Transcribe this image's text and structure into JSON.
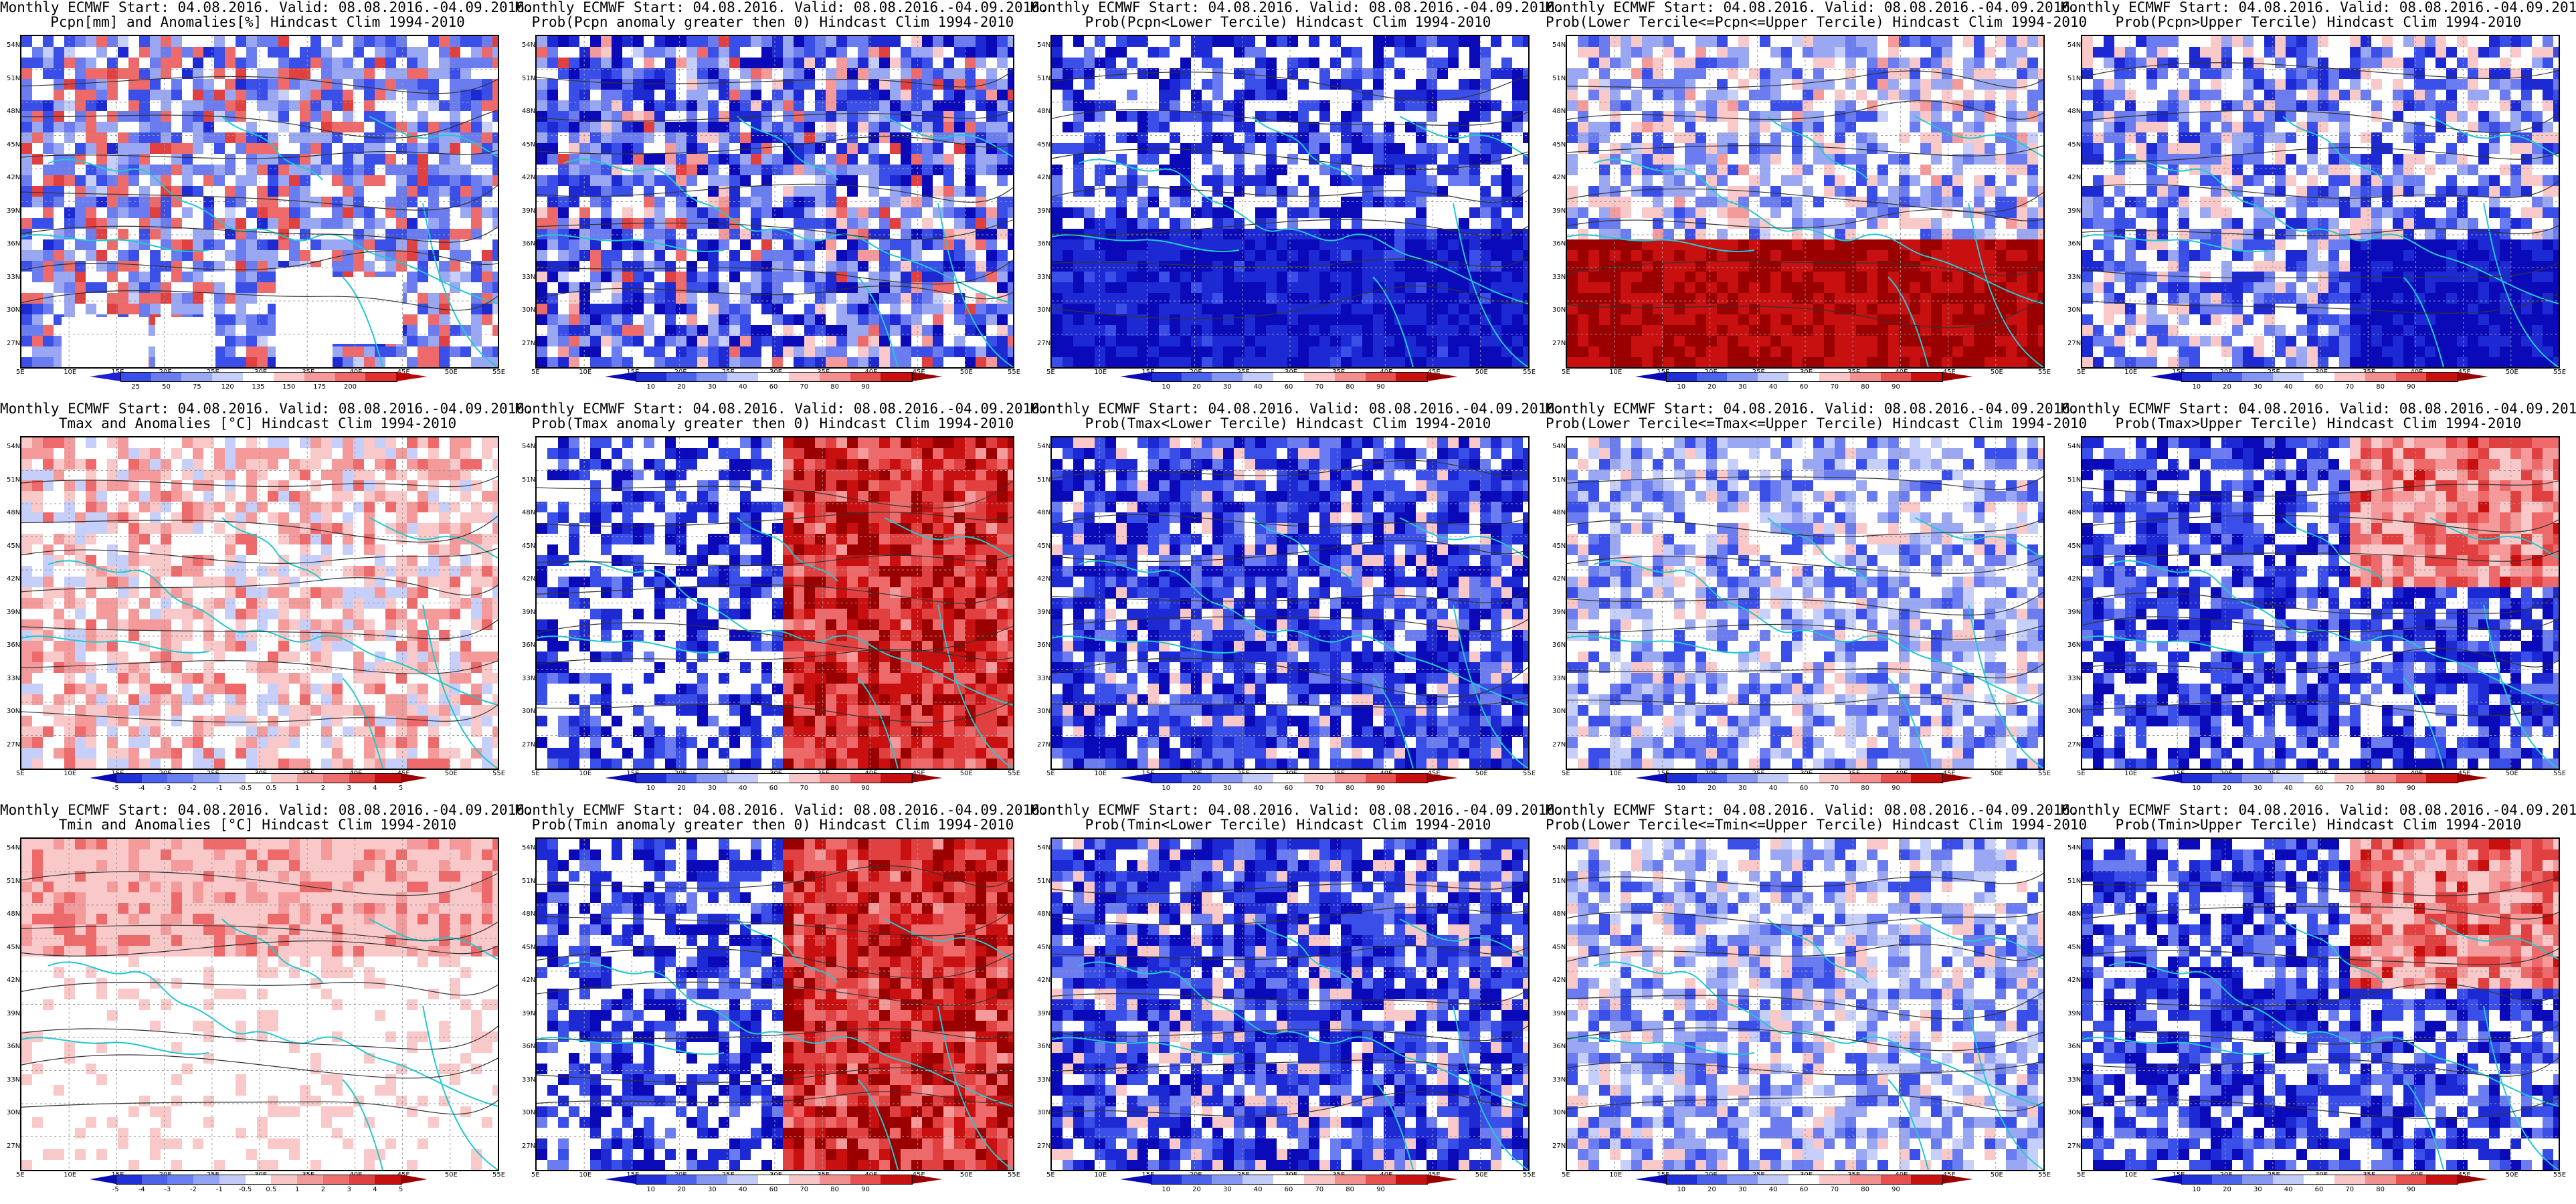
{
  "figure": {
    "header": "Monthly ECMWF Start: 04.08.2016. Valid: 08.08.2016.-04.09.2016.",
    "lat_labels": [
      "54N",
      "51N",
      "48N",
      "45N",
      "42N",
      "39N",
      "36N",
      "33N",
      "30N",
      "27N"
    ],
    "lon_labels": [
      "5E",
      "10E",
      "15E",
      "20E",
      "25E",
      "30E",
      "35E",
      "40E",
      "45E",
      "50E",
      "55E"
    ]
  },
  "colorbars": {
    "precip": {
      "labels": [
        "25",
        "50",
        "75",
        "120",
        "135",
        "150",
        "175",
        "200"
      ],
      "colors": [
        "#1f1fd8",
        "#3a4ee8",
        "#6a7cf0",
        "#9aa8f4",
        "#c6ceFA",
        "#ffffff",
        "#f9c8c8",
        "#f49a9a",
        "#ee6a6a",
        "#e03030",
        "#c00000"
      ]
    },
    "prob": {
      "labels": [
        "10",
        "20",
        "30",
        "40",
        "60",
        "70",
        "80",
        "90"
      ],
      "colors": [
        "#0a0ab8",
        "#2030d8",
        "#4a62ec",
        "#8496f2",
        "#c2cbf8",
        "#ffffff",
        "#f8c6c6",
        "#f29090",
        "#e85050",
        "#c81010",
        "#9a0000"
      ]
    },
    "temp": {
      "labels": [
        "-5",
        "-4",
        "-3",
        "-2",
        "-1",
        "-0.5",
        "0.5",
        "1",
        "2",
        "3",
        "4",
        "5"
      ],
      "colors": [
        "#0a0ab8",
        "#2030d8",
        "#4a62ec",
        "#6a80f0",
        "#94a4f4",
        "#c2cbf8",
        "#ffffff",
        "#f8c6c6",
        "#f29a9a",
        "#ec7070",
        "#e04040",
        "#c81010",
        "#9a0000"
      ]
    }
  },
  "panels": [
    {
      "id": "p1",
      "line2": "Pcpn[mm] and Anomalies[%] Hindcast Clim 1994-2010",
      "cbar": "precip",
      "bias": "mixed-precip"
    },
    {
      "id": "p2",
      "line2": "Prob(Pcpn anomaly greater then 0) Hindcast Clim 1994-2010",
      "cbar": "prob",
      "bias": "blue"
    },
    {
      "id": "p3",
      "line2": "Prob(Pcpn<Lower Tercile) Hindcast Clim 1994-2010",
      "cbar": "prob",
      "bias": "deepblue-south"
    },
    {
      "id": "p4",
      "line2": "Prob(Lower Tercile<=Pcpn<=Upper Tercile) Hindcast Clim 1994-2010",
      "cbar": "prob",
      "bias": "red-south"
    },
    {
      "id": "p5",
      "line2": "Prob(Pcpn>Upper Tercile) Hindcast Clim 1994-2010",
      "cbar": "prob",
      "bias": "blue-south"
    },
    {
      "id": "p6",
      "line2": "Tmax and Anomalies [°C] Hindcast Clim 1994-2010",
      "cbar": "temp",
      "bias": "light-red"
    },
    {
      "id": "p7",
      "line2": "Prob(Tmax anomaly greater then 0) Hindcast Clim 1994-2010",
      "cbar": "prob",
      "bias": "red-east"
    },
    {
      "id": "p8",
      "line2": "Prob(Tmax<Lower Tercile) Hindcast Clim 1994-2010",
      "cbar": "prob",
      "bias": "deepblue"
    },
    {
      "id": "p9",
      "line2": "Prob(Lower Tercile<=Tmax<=Upper Tercile) Hindcast Clim 1994-2010",
      "cbar": "prob",
      "bias": "light-blue"
    },
    {
      "id": "p10",
      "line2": "Prob(Tmax>Upper Tercile) Hindcast Clim 1994-2010",
      "cbar": "prob",
      "bias": "blue-red"
    },
    {
      "id": "p11",
      "line2": "Tmin and Anomalies [°C] Hindcast Clim 1994-2010",
      "cbar": "temp",
      "bias": "light-red-n"
    },
    {
      "id": "p12",
      "line2": "Prob(Tmin anomaly greater then 0) Hindcast Clim 1994-2010",
      "cbar": "prob",
      "bias": "red-east"
    },
    {
      "id": "p13",
      "line2": "Prob(Tmin<Lower Tercile) Hindcast Clim 1994-2010",
      "cbar": "prob",
      "bias": "deepblue"
    },
    {
      "id": "p14",
      "line2": "Prob(Lower Tercile<=Tmin<=Upper Tercile) Hindcast Clim 1994-2010",
      "cbar": "prob",
      "bias": "light-blue"
    },
    {
      "id": "p15",
      "line2": "Prob(Tmin>Upper Tercile) Hindcast Clim 1994-2010",
      "cbar": "prob",
      "bias": "blue-red"
    }
  ]
}
